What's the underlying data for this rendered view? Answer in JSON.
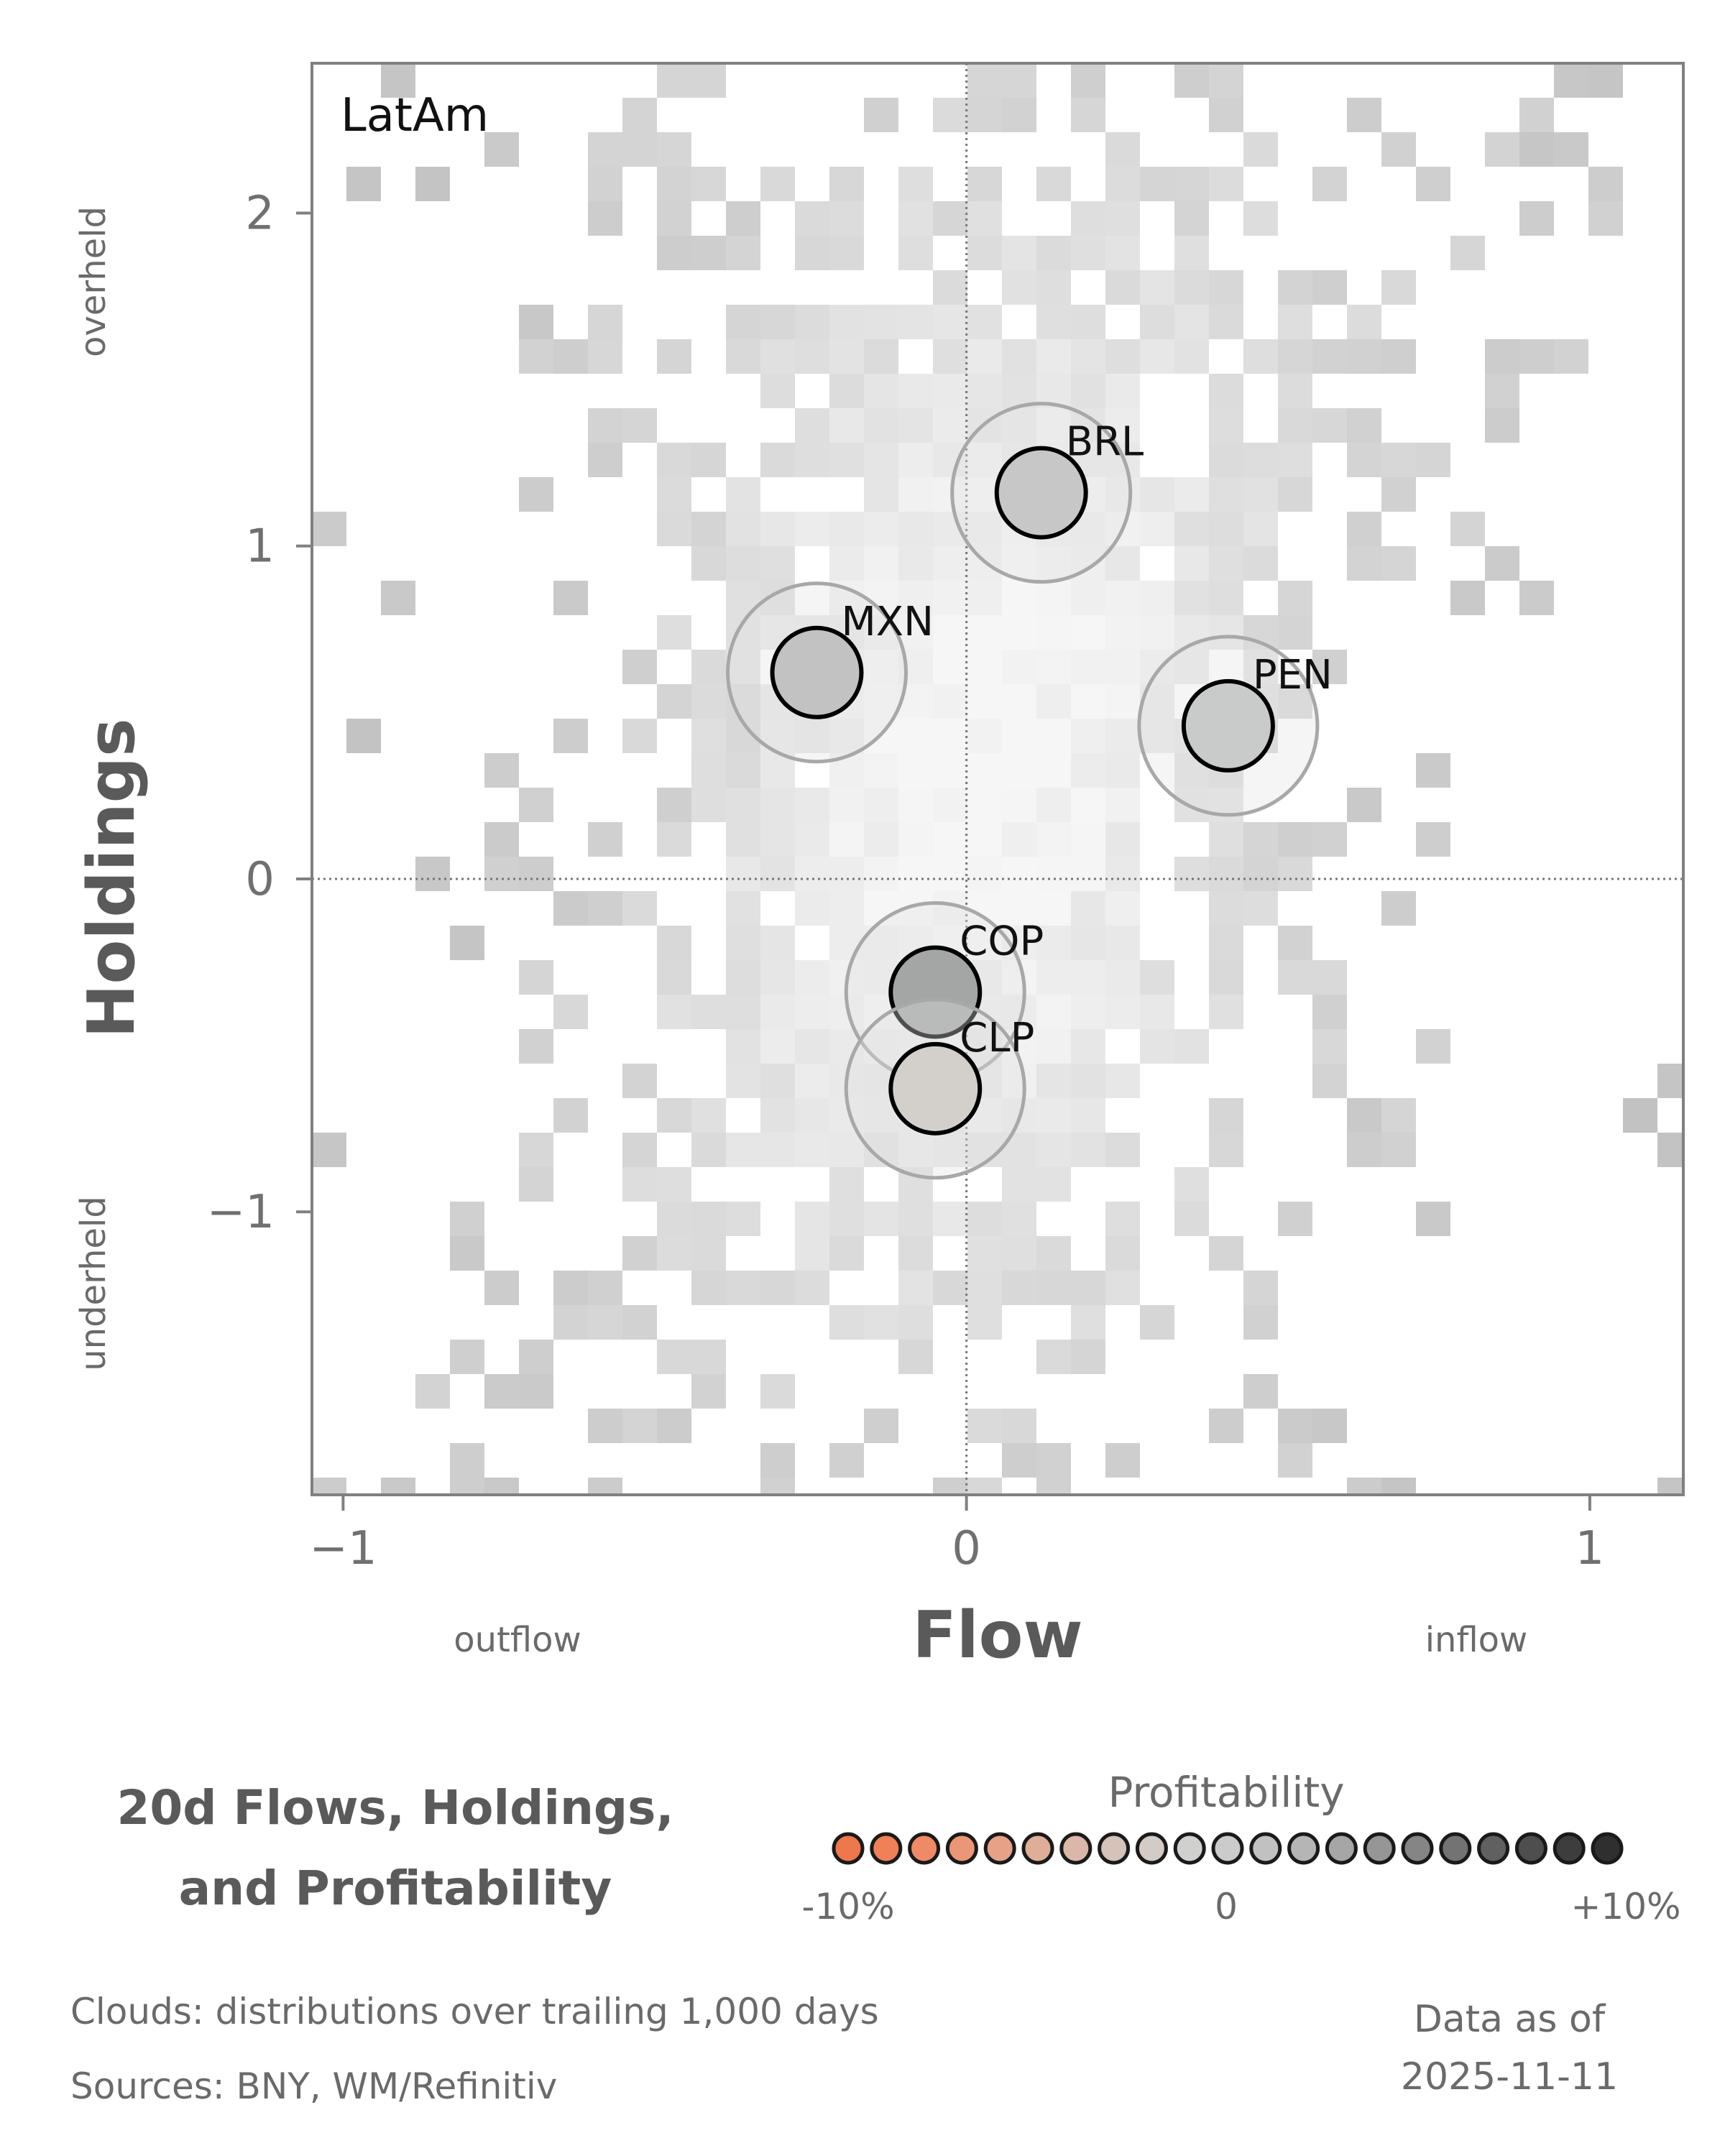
{
  "chart_data": {
    "type": "scatter",
    "panel_label": "LatAm",
    "xlabel": "Flow",
    "ylabel": "Holdings",
    "x_side_labels": [
      "outflow",
      "inflow"
    ],
    "y_side_labels": [
      "overheld",
      "underheld"
    ],
    "xlim": [
      -1.05,
      1.15
    ],
    "ylim": [
      -1.85,
      2.45
    ],
    "xticks": [
      -1,
      0,
      1
    ],
    "yticks": [
      -1,
      0,
      1,
      2
    ],
    "xtick_labels": [
      "−1",
      "0",
      "1"
    ],
    "ytick_labels": [
      "−1",
      "0",
      "1",
      "2"
    ],
    "reference_lines": {
      "x": 0,
      "y": 0
    },
    "background": "heatmap clouds of historical flow/holdings distributions",
    "points": [
      {
        "label": "BRL",
        "x": 0.12,
        "y": 1.16,
        "color": "#c6c7c6"
      },
      {
        "label": "MXN",
        "x": -0.24,
        "y": 0.62,
        "color": "#c2c2c2"
      },
      {
        "label": "PEN",
        "x": 0.42,
        "y": 0.46,
        "color": "#c9cbca"
      },
      {
        "label": "COP",
        "x": -0.05,
        "y": -0.34,
        "color": "#a4a6a5"
      },
      {
        "label": "CLP",
        "x": -0.05,
        "y": -0.63,
        "color": "#d3d0cc"
      }
    ],
    "legend": {
      "title": "Profitability",
      "tick_labels": [
        "-10%",
        "0",
        "+10%"
      ],
      "colors": [
        "#ef774c",
        "#f08058",
        "#ee8a66",
        "#eb9677",
        "#e6a186",
        "#dfae98",
        "#dab7a8",
        "#d6c2b8",
        "#d3ccc6",
        "#d0d0cf",
        "#cacbca",
        "#c0c1c0",
        "#b4b5b4",
        "#a5a6a5",
        "#959695",
        "#848584",
        "#727372",
        "#5f605f",
        "#4d4e4d",
        "#3c3d3c",
        "#2f2f2f"
      ]
    }
  },
  "title": [
    "20d Flows, Holdings,",
    "and Profitability"
  ],
  "footnotes": {
    "clouds": "Clouds:  distributions over trailing 1,000 days",
    "sources": "Sources:  BNY, WM/Refinitiv"
  },
  "data_as_of": {
    "label": "Data as of",
    "date": "2025-11-11"
  }
}
